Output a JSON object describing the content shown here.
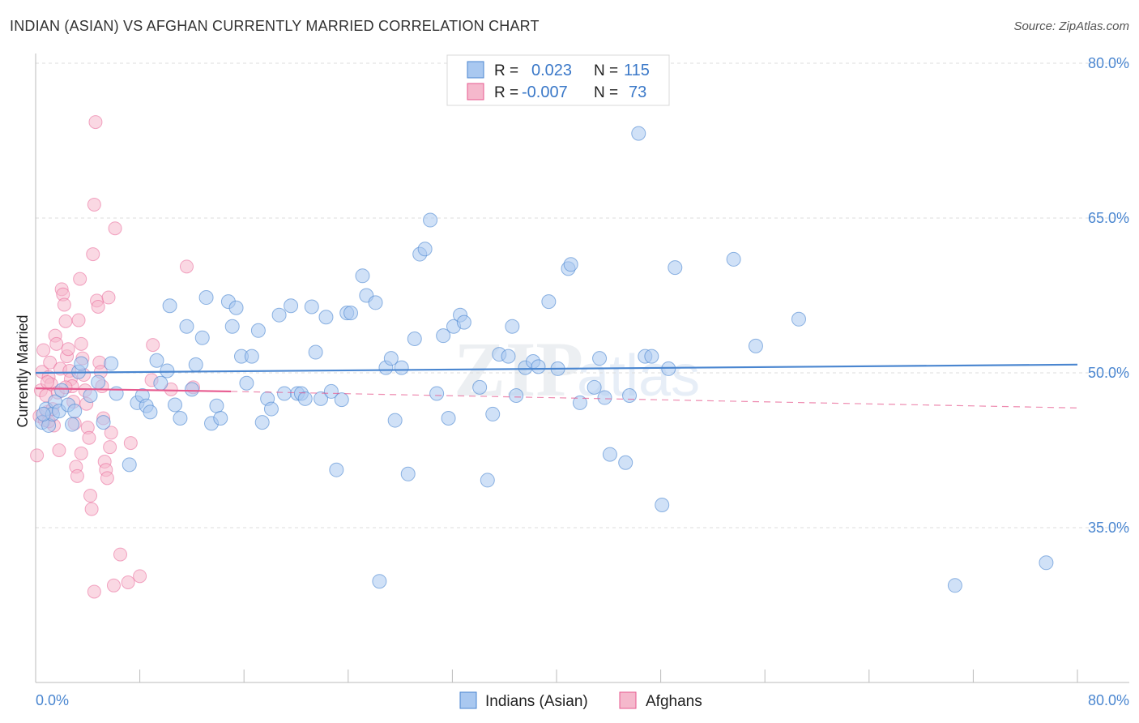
{
  "title": "INDIAN (ASIAN) VS AFGHAN CURRENTLY MARRIED CORRELATION CHART",
  "source": "Source: ZipAtlas.com",
  "watermark": "ZIPatlas",
  "colors": {
    "blue": "#4a86d0",
    "blue_fill": "#a9c8f0",
    "pink": "#e75a8f",
    "pink_fill": "#f5b8cc",
    "grid": "#dddddd"
  },
  "legend": {
    "rows": [
      {
        "r_label": "R =",
        "r_value": "0.023",
        "n_label": "N =",
        "n_value": "115"
      },
      {
        "r_label": "R =",
        "r_value": "-0.007",
        "n_label": "N =",
        "n_value": "73"
      }
    ]
  },
  "bottom_legend": [
    "Indians (Asian)",
    "Afghans"
  ],
  "chart_data": {
    "type": "scatter",
    "title": "INDIAN (ASIAN) VS AFGHAN CURRENTLY MARRIED CORRELATION CHART",
    "xlabel": "",
    "ylabel": "Currently Married",
    "xlim": [
      0,
      80
    ],
    "ylim": [
      20,
      80
    ],
    "x_tick_labels": [
      "0.0%",
      "80.0%"
    ],
    "y_ticks": [
      35,
      50,
      65,
      80
    ],
    "y_tick_labels": [
      "35.0%",
      "50.0%",
      "65.0%",
      "80.0%"
    ],
    "grid": true,
    "legend_position": "top-center",
    "series": [
      {
        "name": "Indians (Asian)",
        "color": "#4a86d0",
        "trend": [
          [
            0,
            50.0
          ],
          [
            80,
            50.8
          ]
        ],
        "points": [
          [
            0.5,
            45.2
          ],
          [
            0.8,
            46.5
          ],
          [
            1.0,
            44.9
          ],
          [
            1.3,
            46.0
          ],
          [
            1.5,
            47.2
          ],
          [
            1.8,
            46.3
          ],
          [
            2.0,
            48.3
          ],
          [
            2.5,
            46.9
          ],
          [
            2.8,
            45.0
          ],
          [
            3.0,
            46.3
          ],
          [
            3.3,
            50.1
          ],
          [
            3.5,
            50.9
          ],
          [
            4.2,
            47.8
          ],
          [
            4.8,
            49.1
          ],
          [
            5.2,
            45.2
          ],
          [
            5.8,
            50.9
          ],
          [
            6.2,
            48.0
          ],
          [
            7.2,
            41.1
          ],
          [
            7.8,
            47.1
          ],
          [
            8.2,
            47.8
          ],
          [
            8.5,
            46.8
          ],
          [
            8.8,
            46.2
          ],
          [
            9.3,
            51.2
          ],
          [
            9.6,
            49.0
          ],
          [
            10.1,
            50.2
          ],
          [
            10.3,
            56.5
          ],
          [
            10.7,
            46.9
          ],
          [
            11.1,
            45.6
          ],
          [
            11.6,
            54.5
          ],
          [
            12.0,
            48.4
          ],
          [
            12.3,
            50.8
          ],
          [
            12.8,
            53.4
          ],
          [
            13.1,
            57.3
          ],
          [
            13.5,
            45.1
          ],
          [
            13.9,
            46.8
          ],
          [
            14.2,
            45.6
          ],
          [
            14.8,
            56.9
          ],
          [
            15.1,
            54.5
          ],
          [
            15.4,
            56.3
          ],
          [
            15.8,
            51.6
          ],
          [
            16.2,
            49.0
          ],
          [
            16.6,
            51.6
          ],
          [
            17.1,
            54.1
          ],
          [
            17.4,
            45.2
          ],
          [
            17.8,
            47.5
          ],
          [
            18.1,
            46.5
          ],
          [
            18.7,
            55.6
          ],
          [
            19.1,
            48.0
          ],
          [
            19.6,
            56.5
          ],
          [
            20.1,
            48.0
          ],
          [
            20.4,
            48.0
          ],
          [
            20.7,
            47.5
          ],
          [
            21.2,
            56.4
          ],
          [
            21.5,
            52.0
          ],
          [
            21.9,
            47.5
          ],
          [
            22.3,
            55.4
          ],
          [
            22.7,
            48.2
          ],
          [
            23.1,
            40.6
          ],
          [
            23.5,
            47.4
          ],
          [
            23.9,
            55.8
          ],
          [
            24.2,
            55.8
          ],
          [
            25.1,
            59.4
          ],
          [
            25.4,
            57.5
          ],
          [
            26.1,
            56.8
          ],
          [
            26.4,
            29.8
          ],
          [
            26.9,
            50.5
          ],
          [
            27.3,
            51.4
          ],
          [
            27.6,
            45.4
          ],
          [
            28.1,
            50.5
          ],
          [
            28.6,
            40.2
          ],
          [
            29.1,
            53.3
          ],
          [
            29.5,
            61.5
          ],
          [
            29.9,
            62.0
          ],
          [
            30.3,
            64.8
          ],
          [
            30.8,
            48.0
          ],
          [
            31.3,
            53.6
          ],
          [
            31.7,
            45.6
          ],
          [
            32.1,
            54.5
          ],
          [
            32.6,
            55.6
          ],
          [
            32.9,
            54.9
          ],
          [
            34.1,
            48.6
          ],
          [
            34.7,
            39.6
          ],
          [
            35.1,
            46.0
          ],
          [
            35.6,
            51.8
          ],
          [
            36.3,
            51.6
          ],
          [
            36.6,
            54.5
          ],
          [
            36.9,
            47.8
          ],
          [
            37.6,
            50.5
          ],
          [
            38.2,
            51.1
          ],
          [
            38.6,
            50.6
          ],
          [
            39.4,
            56.9
          ],
          [
            40.1,
            50.4
          ],
          [
            40.9,
            60.1
          ],
          [
            41.1,
            60.5
          ],
          [
            41.8,
            47.1
          ],
          [
            42.9,
            48.6
          ],
          [
            43.3,
            51.4
          ],
          [
            43.7,
            47.6
          ],
          [
            44.1,
            42.1
          ],
          [
            45.3,
            41.3
          ],
          [
            45.6,
            47.8
          ],
          [
            46.3,
            73.2
          ],
          [
            46.8,
            51.6
          ],
          [
            47.3,
            51.6
          ],
          [
            48.1,
            37.2
          ],
          [
            48.6,
            50.4
          ],
          [
            49.1,
            60.2
          ],
          [
            53.6,
            61.0
          ],
          [
            55.3,
            52.6
          ],
          [
            58.6,
            55.2
          ],
          [
            70.6,
            29.4
          ],
          [
            77.6,
            31.6
          ],
          [
            0.6,
            46.0
          ]
        ]
      },
      {
        "name": "Afghans",
        "color": "#e75a8f",
        "trend": [
          [
            0,
            48.5
          ],
          [
            15,
            48.2
          ]
        ],
        "trend_dashed": [
          [
            15,
            48.2
          ],
          [
            80,
            46.6
          ]
        ],
        "points": [
          [
            0.1,
            42.0
          ],
          [
            0.3,
            45.8
          ],
          [
            0.4,
            48.3
          ],
          [
            0.5,
            50.1
          ],
          [
            0.6,
            52.2
          ],
          [
            0.7,
            45.4
          ],
          [
            0.8,
            47.8
          ],
          [
            0.9,
            46.2
          ],
          [
            1.0,
            49.6
          ],
          [
            1.1,
            51.0
          ],
          [
            1.2,
            48.9
          ],
          [
            1.3,
            46.5
          ],
          [
            1.4,
            44.9
          ],
          [
            1.5,
            53.6
          ],
          [
            1.6,
            52.8
          ],
          [
            1.7,
            48.1
          ],
          [
            1.8,
            42.5
          ],
          [
            1.9,
            50.4
          ],
          [
            2.0,
            58.1
          ],
          [
            2.1,
            57.6
          ],
          [
            2.2,
            56.6
          ],
          [
            2.3,
            55.0
          ],
          [
            2.4,
            51.6
          ],
          [
            2.5,
            52.3
          ],
          [
            2.6,
            50.2
          ],
          [
            2.7,
            49.4
          ],
          [
            2.8,
            48.7
          ],
          [
            2.9,
            47.2
          ],
          [
            3.0,
            45.1
          ],
          [
            3.1,
            40.9
          ],
          [
            3.2,
            40.0
          ],
          [
            3.3,
            55.1
          ],
          [
            3.4,
            59.1
          ],
          [
            3.5,
            52.8
          ],
          [
            3.6,
            51.4
          ],
          [
            3.7,
            49.8
          ],
          [
            3.8,
            48.3
          ],
          [
            3.9,
            47.0
          ],
          [
            4.0,
            44.7
          ],
          [
            4.1,
            43.7
          ],
          [
            4.2,
            38.1
          ],
          [
            4.3,
            36.8
          ],
          [
            4.4,
            61.5
          ],
          [
            4.5,
            66.3
          ],
          [
            4.6,
            74.3
          ],
          [
            4.7,
            57.0
          ],
          [
            4.8,
            56.4
          ],
          [
            4.9,
            51.0
          ],
          [
            5.0,
            50.1
          ],
          [
            5.1,
            48.7
          ],
          [
            5.2,
            45.6
          ],
          [
            5.3,
            41.4
          ],
          [
            5.4,
            40.6
          ],
          [
            5.5,
            39.8
          ],
          [
            5.6,
            57.3
          ],
          [
            5.7,
            42.8
          ],
          [
            5.8,
            44.2
          ],
          [
            6.1,
            64.0
          ],
          [
            6.5,
            32.4
          ],
          [
            7.1,
            29.7
          ],
          [
            7.3,
            43.2
          ],
          [
            8.0,
            30.3
          ],
          [
            8.9,
            49.3
          ],
          [
            9.0,
            52.7
          ],
          [
            10.4,
            48.4
          ],
          [
            11.6,
            60.3
          ],
          [
            12.1,
            48.6
          ],
          [
            6.0,
            29.4
          ],
          [
            4.5,
            28.8
          ],
          [
            1.0,
            45.3
          ],
          [
            3.5,
            42.2
          ],
          [
            2.3,
            48.6
          ],
          [
            0.9,
            49.1
          ]
        ]
      }
    ]
  }
}
